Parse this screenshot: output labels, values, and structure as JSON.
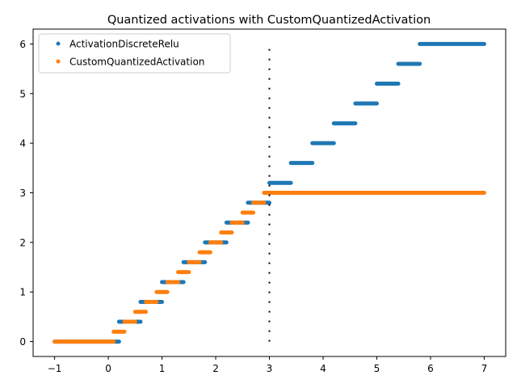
{
  "chart_data": {
    "type": "scatter",
    "title": "Quantized activations with CustomQuantizedActivation",
    "xlabel": "",
    "ylabel": "",
    "xlim": [
      -1.4,
      7.4
    ],
    "ylim": [
      -0.3,
      6.3
    ],
    "xticks": [
      -1,
      0,
      1,
      2,
      3,
      4,
      5,
      6,
      7
    ],
    "xtick_labels": [
      "−1",
      "0",
      "1",
      "2",
      "3",
      "4",
      "5",
      "6",
      "7"
    ],
    "yticks": [
      0,
      1,
      2,
      3,
      4,
      5,
      6
    ],
    "ytick_labels": [
      "0",
      "1",
      "2",
      "3",
      "4",
      "5",
      "6"
    ],
    "grid": false,
    "legend_position": "top-left",
    "vline": {
      "x": 3,
      "ymin": 0,
      "ymax": 6,
      "style": "dotted",
      "color": "#000000"
    },
    "series": [
      {
        "name": "ActivationDiscreteRelu",
        "color": "#1f77b4",
        "marker": "dot",
        "segments": [
          {
            "x_start": -1.0,
            "x_end": 0.2,
            "y": 0.0
          },
          {
            "x_start": 0.2,
            "x_end": 0.6,
            "y": 0.4
          },
          {
            "x_start": 0.6,
            "x_end": 1.0,
            "y": 0.8
          },
          {
            "x_start": 1.0,
            "x_end": 1.4,
            "y": 1.2
          },
          {
            "x_start": 1.4,
            "x_end": 1.8,
            "y": 1.6
          },
          {
            "x_start": 1.8,
            "x_end": 2.2,
            "y": 2.0
          },
          {
            "x_start": 2.2,
            "x_end": 2.6,
            "y": 2.4
          },
          {
            "x_start": 2.6,
            "x_end": 3.0,
            "y": 2.8
          },
          {
            "x_start": 3.0,
            "x_end": 3.4,
            "y": 3.2
          },
          {
            "x_start": 3.4,
            "x_end": 3.8,
            "y": 3.6
          },
          {
            "x_start": 3.8,
            "x_end": 4.2,
            "y": 4.0
          },
          {
            "x_start": 4.2,
            "x_end": 4.6,
            "y": 4.4
          },
          {
            "x_start": 4.6,
            "x_end": 5.0,
            "y": 4.8
          },
          {
            "x_start": 5.0,
            "x_end": 5.4,
            "y": 5.2
          },
          {
            "x_start": 5.4,
            "x_end": 5.8,
            "y": 5.6
          },
          {
            "x_start": 5.8,
            "x_end": 7.0,
            "y": 6.0
          }
        ]
      },
      {
        "name": "CustomQuantizedActivation",
        "color": "#ff7f0e",
        "marker": "dot",
        "segments": [
          {
            "x_start": -1.0,
            "x_end": 0.1,
            "y": 0.0
          },
          {
            "x_start": 0.1,
            "x_end": 0.3,
            "y": 0.2
          },
          {
            "x_start": 0.3,
            "x_end": 0.5,
            "y": 0.4
          },
          {
            "x_start": 0.5,
            "x_end": 0.7,
            "y": 0.6
          },
          {
            "x_start": 0.7,
            "x_end": 0.9,
            "y": 0.8
          },
          {
            "x_start": 0.9,
            "x_end": 1.1,
            "y": 1.0
          },
          {
            "x_start": 1.1,
            "x_end": 1.3,
            "y": 1.2
          },
          {
            "x_start": 1.3,
            "x_end": 1.5,
            "y": 1.4
          },
          {
            "x_start": 1.5,
            "x_end": 1.7,
            "y": 1.6
          },
          {
            "x_start": 1.7,
            "x_end": 1.9,
            "y": 1.8
          },
          {
            "x_start": 1.9,
            "x_end": 2.1,
            "y": 2.0
          },
          {
            "x_start": 2.1,
            "x_end": 2.3,
            "y": 2.2
          },
          {
            "x_start": 2.3,
            "x_end": 2.5,
            "y": 2.4
          },
          {
            "x_start": 2.5,
            "x_end": 2.7,
            "y": 2.6
          },
          {
            "x_start": 2.7,
            "x_end": 2.9,
            "y": 2.8
          },
          {
            "x_start": 2.9,
            "x_end": 7.0,
            "y": 3.0
          }
        ]
      }
    ]
  }
}
